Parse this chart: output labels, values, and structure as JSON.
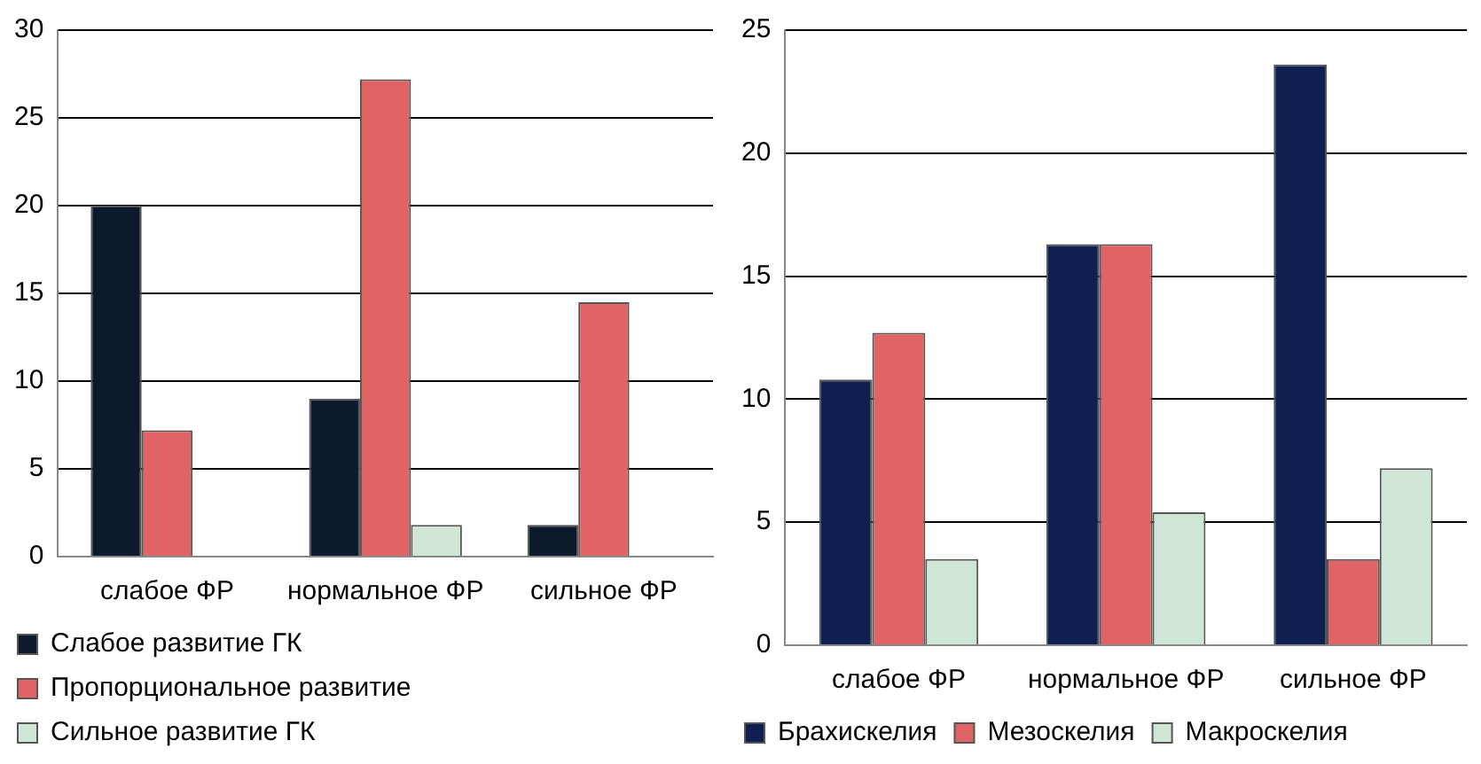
{
  "chart_data": [
    {
      "type": "bar",
      "categories": [
        "слабое ФР",
        "нормальное ФР",
        "сильное ФР"
      ],
      "ylim": [
        0,
        30
      ],
      "yticks": [
        0,
        5,
        10,
        15,
        20,
        25,
        30
      ],
      "grid": "y",
      "legend": "bottom",
      "series": [
        {
          "name": "Слабое развитие ГК",
          "color": "#0d1a2b",
          "values": [
            20,
            9,
            1.8
          ]
        },
        {
          "name": "Пропорциональное развитие",
          "color": "#e06464",
          "values": [
            7.2,
            27.2,
            14.5
          ]
        },
        {
          "name": "Сильное развитие ГК",
          "color": "#cfe6d6",
          "values": [
            null,
            1.8,
            null
          ]
        }
      ]
    },
    {
      "type": "bar",
      "categories": [
        "слабое ФР",
        "нормальное ФР",
        "сильное ФР"
      ],
      "ylim": [
        0,
        25
      ],
      "yticks": [
        0,
        5,
        10,
        15,
        20,
        25
      ],
      "grid": "y",
      "legend": "bottom",
      "series": [
        {
          "name": "Брахискелия",
          "color": "#0f1f4f",
          "values": [
            10.8,
            16.3,
            23.6
          ]
        },
        {
          "name": "Мезоскелия",
          "color": "#e06464",
          "values": [
            12.7,
            16.3,
            3.5
          ]
        },
        {
          "name": "Макроскелия",
          "color": "#cfe6d6",
          "values": [
            3.5,
            5.4,
            7.2
          ]
        }
      ]
    }
  ]
}
